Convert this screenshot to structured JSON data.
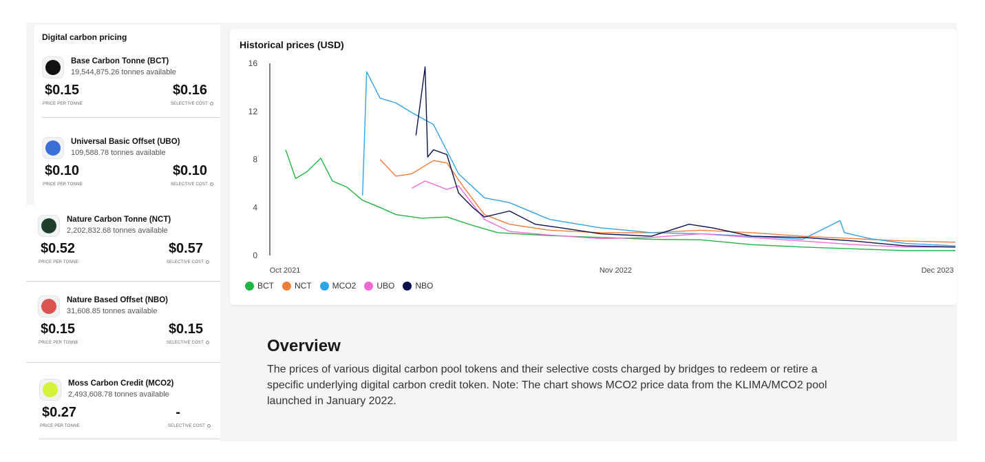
{
  "sidebar": {
    "title": "Digital carbon pricing",
    "price_label": "PRICE PER TONNE",
    "selective_label": "SELECTIVE COST",
    "tokens": [
      {
        "name": "Base Carbon Tonne (BCT)",
        "available": "19,544,875.26 tonnes available",
        "price": "$0.15",
        "selective_cost": "$0.16",
        "logo_color": "#111111",
        "logo_icon": "bct-logo-icon"
      },
      {
        "name": "Universal Basic Offset (UBO)",
        "available": "109,588.78 tonnes available",
        "price": "$0.10",
        "selective_cost": "$0.10",
        "logo_color": "#3a6fd8",
        "logo_icon": "ubo-logo-icon"
      },
      {
        "name": "Nature Carbon Tonne (NCT)",
        "available": "2,202,832.68 tonnes available",
        "price": "$0.52",
        "selective_cost": "$0.57",
        "logo_color": "#1f3d2b",
        "logo_icon": "nct-logo-icon"
      },
      {
        "name": "Nature Based Offset (NBO)",
        "available": "31,608.85 tonnes available",
        "price": "$0.15",
        "selective_cost": "$0.15",
        "logo_color": "#d9534f",
        "logo_icon": "nbo-logo-icon"
      },
      {
        "name": "Moss Carbon Credit (MCO2)",
        "available": "2,493,608.78 tonnes available",
        "price": "$0.27",
        "selective_cost": "-",
        "logo_color": "#d7f23a",
        "logo_icon": "mco2-logo-icon"
      }
    ]
  },
  "chart_data": {
    "type": "line",
    "title": "Historical prices (USD)",
    "xlabel": "",
    "ylabel": "",
    "x_ticks": [
      "Oct 2021",
      "Nov 2022",
      "Dec 2023"
    ],
    "y_ticks": [
      0,
      4,
      8,
      12,
      16
    ],
    "ylim": [
      0,
      16
    ],
    "grid": false,
    "legend": "bottom-left",
    "series": [
      {
        "name": "BCT",
        "color": "#22b543",
        "x": [
          "2021-10-20",
          "2021-11-01",
          "2021-11-15",
          "2021-12-01",
          "2021-12-15",
          "2022-01-01",
          "2022-01-20",
          "2022-02-10",
          "2022-03-01",
          "2022-04-01",
          "2022-05-01",
          "2022-06-01",
          "2022-07-01",
          "2022-09-01",
          "2022-11-01",
          "2023-01-01",
          "2023-03-01",
          "2023-05-01",
          "2023-07-01",
          "2023-09-01",
          "2023-11-01",
          "2023-12-31"
        ],
        "y": [
          8.8,
          6.4,
          7.0,
          8.1,
          6.2,
          5.7,
          4.6,
          4.0,
          3.4,
          3.1,
          3.2,
          2.5,
          1.9,
          1.65,
          1.5,
          1.35,
          1.3,
          0.9,
          0.7,
          0.55,
          0.4,
          0.4
        ]
      },
      {
        "name": "NCT",
        "color": "#f07c3a",
        "x": [
          "2022-02-10",
          "2022-03-01",
          "2022-03-20",
          "2022-04-15",
          "2022-05-01",
          "2022-05-20",
          "2022-06-15",
          "2022-07-15",
          "2022-09-01",
          "2022-11-01",
          "2023-01-01",
          "2023-03-01",
          "2023-05-01",
          "2023-07-01",
          "2023-09-01",
          "2023-11-01",
          "2023-12-31"
        ],
        "y": [
          8.0,
          6.6,
          6.8,
          7.9,
          7.7,
          5.8,
          3.4,
          2.6,
          2.1,
          1.9,
          1.9,
          2.1,
          1.9,
          1.6,
          1.4,
          1.2,
          1.1
        ]
      },
      {
        "name": "MCO2",
        "color": "#2fa3e9",
        "x": [
          "2022-01-20",
          "2022-01-25",
          "2022-02-10",
          "2022-03-01",
          "2022-03-20",
          "2022-04-15",
          "2022-05-15",
          "2022-06-15",
          "2022-07-15",
          "2022-09-01",
          "2022-11-01",
          "2023-01-01",
          "2023-03-01",
          "2023-05-01",
          "2023-07-01",
          "2023-08-15",
          "2023-08-20",
          "2023-09-20",
          "2023-11-01",
          "2023-12-31"
        ],
        "y": [
          5.0,
          15.3,
          13.1,
          12.7,
          11.9,
          10.9,
          6.8,
          4.8,
          4.4,
          3.0,
          2.3,
          1.9,
          1.8,
          1.6,
          1.35,
          2.9,
          1.9,
          1.4,
          1.0,
          0.8
        ]
      },
      {
        "name": "UBO",
        "color": "#f06ad6",
        "x": [
          "2022-03-20",
          "2022-04-05",
          "2022-05-01",
          "2022-05-15",
          "2022-06-15",
          "2022-07-15",
          "2022-09-01",
          "2022-11-01",
          "2023-01-01",
          "2023-03-01",
          "2023-05-01",
          "2023-07-01",
          "2023-09-01",
          "2023-11-01",
          "2023-12-31"
        ],
        "y": [
          5.6,
          6.2,
          5.5,
          5.8,
          3.0,
          2.0,
          1.7,
          1.4,
          1.5,
          1.8,
          1.5,
          1.2,
          0.9,
          0.7,
          0.7
        ]
      },
      {
        "name": "NBO",
        "color": "#0b0f4d",
        "x": [
          "2022-03-25",
          "2022-04-05",
          "2022-04-08",
          "2022-04-15",
          "2022-05-01",
          "2022-05-15",
          "2022-06-01",
          "2022-06-15",
          "2022-07-15",
          "2022-08-15",
          "2022-09-15",
          "2022-11-01",
          "2023-01-01",
          "2023-02-15",
          "2023-03-15",
          "2023-05-01",
          "2023-07-01",
          "2023-09-01",
          "2023-11-01",
          "2023-12-31"
        ],
        "y": [
          10.0,
          15.7,
          8.2,
          8.8,
          8.4,
          5.2,
          4.0,
          3.2,
          3.7,
          2.6,
          2.3,
          1.8,
          1.6,
          2.6,
          2.3,
          1.6,
          1.5,
          1.2,
          0.8,
          0.7
        ]
      }
    ]
  },
  "overview": {
    "title": "Overview",
    "text": "The prices of various digital carbon pool tokens and their selective costs charged by bridges to redeem or retire a specific underlying digital carbon credit token. Note: The chart shows MCO2 price data from the KLIMA/MCO2 pool launched in January 2022."
  }
}
